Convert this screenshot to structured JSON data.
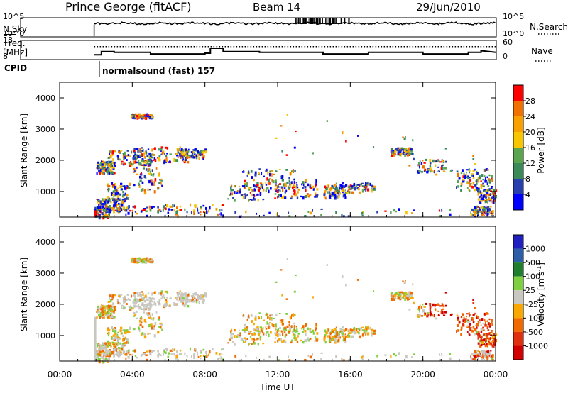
{
  "header": {
    "station": "Prince George (fitACF)",
    "beam": "Beam 14",
    "date": "29/Jun/2010"
  },
  "left_labels": {
    "nsky": "N.Sky",
    "freq_line1": "Freq.",
    "freq_line2": "[MHz]",
    "cpid": "CPID"
  },
  "right_labels": {
    "nsearch": "N.Search",
    "nave": "Nave"
  },
  "cpid_text": "normalsound (fast) 157",
  "colors": {
    "power_scale": [
      "#0000ff",
      "#2a3fae",
      "#3a8a5a",
      "#5aa550",
      "#f7c600",
      "#f7a000",
      "#f07000",
      "#ff0000"
    ],
    "velocity_scale": [
      "#d00000",
      "#e03010",
      "#f06a00",
      "#f8a800",
      "#c8c8c0",
      "#7fd040",
      "#1f7f2f",
      "#2020c0"
    ],
    "ground_scatter": "#c8c8c0"
  },
  "chart_data": [
    {
      "type": "line",
      "name": "noise",
      "ylabel": "N.Sky",
      "y2label": "N.Search",
      "y_ticks": [
        "10^5",
        "10^0"
      ],
      "y2_ticks": [
        "10^5",
        "10^0"
      ],
      "x_range_hours": [
        0,
        24
      ]
    },
    {
      "type": "line",
      "name": "frequency-nave",
      "ylabel": "Freq. [MHz]",
      "y_ticks": [
        18,
        8
      ],
      "y2label": "Nave",
      "y2_ticks": [
        60,
        0
      ],
      "series": [
        {
          "name": "Freq.",
          "x": [
            1.9,
            2.3,
            2.3,
            3.0,
            3.0,
            5.0,
            5.0,
            8.0,
            8.0,
            8.3,
            8.3,
            9.0,
            9.0,
            11.0,
            11.0,
            14.5,
            14.5,
            17.0,
            17.0,
            20.0,
            20.0,
            22.5,
            22.5,
            23.2,
            23.2,
            24.0
          ],
          "y": [
            10.5,
            10.5,
            12.5,
            12.5,
            12.0,
            12.0,
            11.0,
            11.0,
            11.5,
            11.5,
            14.5,
            14.5,
            12.5,
            12.5,
            12.0,
            12.0,
            11.0,
            11.0,
            12.0,
            12.0,
            11.0,
            11.0,
            12.0,
            12.0,
            13.0,
            12.0
          ]
        },
        {
          "name": "Nave",
          "x": [
            1.9,
            24.0
          ],
          "y": [
            45,
            45
          ]
        }
      ]
    },
    {
      "type": "heatmap",
      "name": "power",
      "xlabel": "Time UT",
      "ylabel": "Slant Range [km]",
      "ylim": [
        180,
        4500
      ],
      "y_ticks": [
        1000,
        2000,
        3000,
        4000
      ],
      "x_ticks": [
        "00:00",
        "04:00",
        "08:00",
        "12:00",
        "16:00",
        "20:00",
        "00:00"
      ],
      "colorbar_label": "Power [dB]",
      "colorbar_ticks": [
        4,
        8,
        12,
        16,
        20,
        24,
        28
      ]
    },
    {
      "type": "heatmap",
      "name": "velocity",
      "xlabel": "Time UT",
      "ylabel": "Slant Range [km]",
      "ylim": [
        180,
        4500
      ],
      "y_ticks": [
        1000,
        2000,
        3000,
        4000
      ],
      "x_ticks": [
        "00:00",
        "04:00",
        "08:00",
        "12:00",
        "16:00",
        "20:00",
        "00:00"
      ],
      "colorbar_label": "Velocity [m s^-1]",
      "colorbar_ticks": [
        1000,
        500,
        100,
        25,
        -25,
        -100,
        -500,
        -1000
      ]
    }
  ]
}
